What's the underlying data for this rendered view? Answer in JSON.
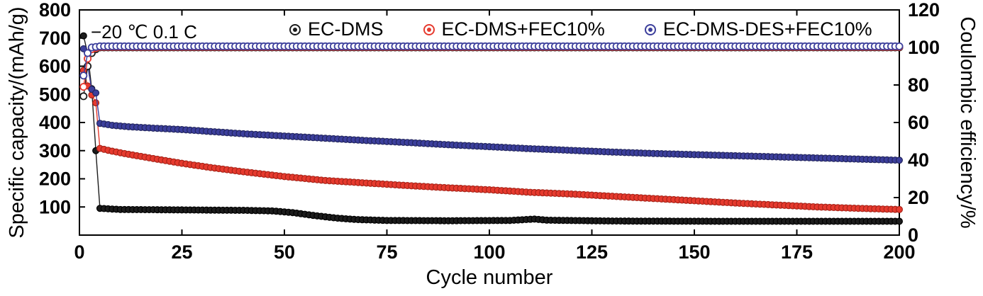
{
  "figure": {
    "background": "#ffffff"
  },
  "chart_data": {
    "type": "line",
    "title": "",
    "xlabel": "Cycle number",
    "ylabel_left": "Specific capacity/(mAh/g)",
    "ylabel_right": "Coulombic efficiency/%",
    "annotation": "−20 ℃  0.1 C",
    "xlim": [
      0,
      200
    ],
    "ylim_left": [
      0,
      800
    ],
    "ylim_right": [
      0,
      120
    ],
    "xticks": [
      0,
      25,
      50,
      75,
      100,
      125,
      150,
      175,
      200
    ],
    "yticks_left": [
      100,
      200,
      300,
      400,
      500,
      600,
      700,
      800
    ],
    "yticks_right": [
      0,
      20,
      40,
      60,
      80,
      100,
      120
    ],
    "grid": false,
    "legend_position": "top-inside",
    "marker_step": 1,
    "legend": [
      {
        "label": "EC-DMS",
        "color": "#1c1c1c"
      },
      {
        "label": "EC-DMS+FEC10%",
        "color": "#e63a2e"
      },
      {
        "label": "EC-DMS-DES+FEC10%",
        "color": "#3c3f9c"
      }
    ],
    "series": [
      {
        "name": "EC-DMS capacity",
        "axis": "left",
        "marker": "filled",
        "color": "#1c1c1c",
        "edge": "#000000",
        "points": [
          [
            1,
            708
          ],
          [
            2,
            645
          ],
          [
            3,
            520
          ],
          [
            4,
            300
          ],
          [
            5,
            95
          ],
          [
            10,
            91
          ],
          [
            20,
            90
          ],
          [
            30,
            89
          ],
          [
            40,
            88
          ],
          [
            47,
            86
          ],
          [
            52,
            80
          ],
          [
            57,
            70
          ],
          [
            63,
            60
          ],
          [
            68,
            55
          ],
          [
            75,
            52
          ],
          [
            90,
            51
          ],
          [
            105,
            52
          ],
          [
            111,
            57
          ],
          [
            114,
            53
          ],
          [
            130,
            50
          ],
          [
            160,
            49
          ],
          [
            200,
            49
          ]
        ]
      },
      {
        "name": "EC-DMS+FEC10% capacity",
        "axis": "left",
        "marker": "filled",
        "color": "#e63a2e",
        "edge": "#a92318",
        "points": [
          [
            1,
            585
          ],
          [
            2,
            530
          ],
          [
            3,
            498
          ],
          [
            4,
            470
          ],
          [
            5,
            308
          ],
          [
            8,
            298
          ],
          [
            12,
            287
          ],
          [
            18,
            272
          ],
          [
            25,
            255
          ],
          [
            32,
            240
          ],
          [
            40,
            225
          ],
          [
            50,
            208
          ],
          [
            60,
            194
          ],
          [
            70,
            185
          ],
          [
            80,
            176
          ],
          [
            90,
            168
          ],
          [
            100,
            161
          ],
          [
            110,
            152
          ],
          [
            120,
            146
          ],
          [
            130,
            138
          ],
          [
            140,
            130
          ],
          [
            150,
            122
          ],
          [
            160,
            114
          ],
          [
            170,
            107
          ],
          [
            180,
            100
          ],
          [
            190,
            95
          ],
          [
            200,
            91
          ]
        ]
      },
      {
        "name": "EC-DMS-DES+FEC10% capacity",
        "axis": "left",
        "marker": "filled",
        "color": "#3c3f9c",
        "edge": "#22255f",
        "points": [
          [
            1,
            662
          ],
          [
            2,
            598
          ],
          [
            3,
            518
          ],
          [
            4,
            505
          ],
          [
            5,
            397
          ],
          [
            8,
            390
          ],
          [
            12,
            385
          ],
          [
            18,
            380
          ],
          [
            25,
            375
          ],
          [
            32,
            368
          ],
          [
            40,
            360
          ],
          [
            50,
            352
          ],
          [
            60,
            344
          ],
          [
            70,
            336
          ],
          [
            80,
            329
          ],
          [
            90,
            321
          ],
          [
            100,
            314
          ],
          [
            110,
            307
          ],
          [
            120,
            301
          ],
          [
            130,
            295
          ],
          [
            140,
            290
          ],
          [
            150,
            286
          ],
          [
            160,
            282
          ],
          [
            170,
            278
          ],
          [
            180,
            274
          ],
          [
            190,
            270
          ],
          [
            200,
            266
          ]
        ]
      },
      {
        "name": "EC-DMS coulombic efficiency",
        "axis": "right",
        "marker": "open",
        "color": "#1c1c1c",
        "points": [
          [
            1,
            74
          ],
          [
            2,
            90
          ],
          [
            3,
            97
          ],
          [
            4,
            99
          ],
          [
            5,
            100.0
          ],
          [
            200,
            100.0
          ]
        ]
      },
      {
        "name": "EC-DMS+FEC10% coulombic efficiency",
        "axis": "right",
        "marker": "open",
        "color": "#e63a2e",
        "points": [
          [
            1,
            79
          ],
          [
            2,
            94
          ],
          [
            3,
            99
          ],
          [
            5,
            100.3
          ],
          [
            200,
            100.3
          ]
        ]
      },
      {
        "name": "EC-DMS-DES+FEC10% coulombic efficiency",
        "axis": "right",
        "marker": "open",
        "color": "#3c3f9c",
        "points": [
          [
            1,
            85
          ],
          [
            2,
            97
          ],
          [
            3,
            100
          ],
          [
            5,
            100.6
          ],
          [
            200,
            100.6
          ]
        ]
      }
    ]
  }
}
